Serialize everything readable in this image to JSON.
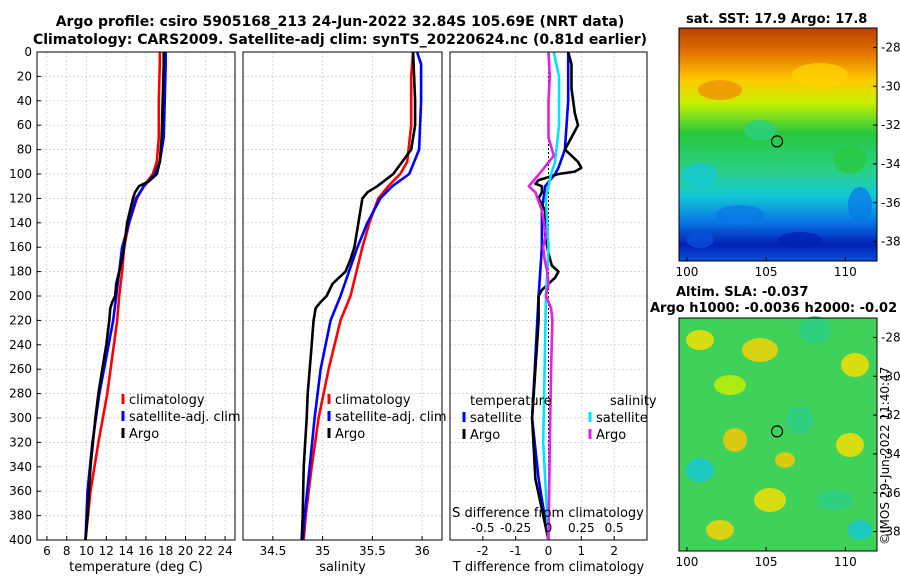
{
  "titles": {
    "line1": "Argo profile: csiro 5905168_213 24-Jun-2022 32.84S 105.69E (NRT data)",
    "line2": "Climatology: CARS2009. Satellite-adj clim: synTS_20220624.nc (0.81d earlier)"
  },
  "colors": {
    "climatology": "#ff0000",
    "satellite": "#0000ff",
    "argo": "#000000",
    "sal_satellite": "#00e5ff",
    "sal_argo": "#e61ee6"
  },
  "map_titles": {
    "sst": "sat. SST: 17.9 Argo: 17.8",
    "sla1": "Altim. SLA: -0.037",
    "sla2": "Argo h1000: -0.0036 h2000: -0.02"
  },
  "credit": "©IMOS 29-Jun-2022 11:40:47",
  "chart_data": [
    {
      "type": "line",
      "name": "temperature",
      "xlabel": "temperature (deg C)",
      "ylabel": "",
      "xlim": [
        5,
        25
      ],
      "ylim": [
        400,
        0
      ],
      "xticks": [
        6,
        8,
        10,
        12,
        14,
        16,
        18,
        20,
        22,
        24
      ],
      "yticks": [
        0,
        20,
        40,
        60,
        80,
        100,
        120,
        140,
        160,
        180,
        200,
        220,
        240,
        260,
        280,
        300,
        320,
        340,
        360,
        380,
        400
      ],
      "legend": [
        "climatology",
        "satellite-adj. clim",
        "Argo"
      ],
      "series": [
        {
          "name": "climatology",
          "color": "#ff0000",
          "depth": [
            0,
            10,
            40,
            70,
            90,
            100,
            110,
            120,
            140,
            160,
            180,
            200,
            220,
            250,
            280,
            320,
            360,
            400
          ],
          "values": [
            17.4,
            17.4,
            17.3,
            17.3,
            17.1,
            16.7,
            15.8,
            15.1,
            14.3,
            13.8,
            13.6,
            13.3,
            13.1,
            12.6,
            12.1,
            11.2,
            10.4,
            9.9
          ]
        },
        {
          "name": "satellite-adj. clim",
          "color": "#0000ff",
          "depth": [
            0,
            10,
            40,
            70,
            90,
            100,
            110,
            120,
            140,
            160,
            180,
            200,
            220,
            250,
            280,
            320,
            360,
            400
          ],
          "values": [
            18.0,
            18.0,
            17.9,
            17.8,
            17.4,
            16.9,
            15.8,
            15.0,
            14.3,
            13.6,
            13.3,
            13.0,
            12.7,
            12.0,
            11.3,
            10.6,
            10.1,
            9.9
          ]
        },
        {
          "name": "Argo",
          "color": "#000000",
          "depth": [
            0,
            10,
            40,
            70,
            90,
            100,
            106,
            110,
            115,
            120,
            140,
            160,
            170,
            180,
            190,
            200,
            205,
            210,
            220,
            240,
            260,
            280,
            300,
            340,
            380,
            400
          ],
          "values": [
            17.8,
            17.8,
            17.7,
            17.6,
            17.4,
            17.1,
            16.3,
            15.3,
            14.9,
            14.7,
            14.1,
            13.8,
            13.6,
            13.3,
            13.0,
            12.9,
            12.6,
            12.4,
            12.3,
            12.0,
            11.6,
            11.2,
            10.9,
            10.4,
            10.1,
            9.9
          ]
        }
      ]
    },
    {
      "type": "line",
      "name": "salinity",
      "xlabel": "salinity",
      "ylabel": "",
      "xlim": [
        34.2,
        36.2
      ],
      "ylim": [
        400,
        0
      ],
      "xticks": [
        34.5,
        35,
        35.5,
        36
      ],
      "legend": [
        "climatology",
        "satellite-adj. clim",
        "Argo"
      ],
      "series": [
        {
          "name": "climatology",
          "color": "#ff0000",
          "depth": [
            0,
            20,
            60,
            90,
            100,
            110,
            120,
            140,
            160,
            200,
            220,
            260,
            300,
            340,
            380,
            400
          ],
          "values": [
            35.91,
            35.89,
            35.89,
            35.85,
            35.78,
            35.66,
            35.56,
            35.47,
            35.4,
            35.28,
            35.18,
            35.06,
            34.96,
            34.89,
            34.83,
            34.81
          ]
        },
        {
          "name": "satellite-adj. clim",
          "color": "#0000ff",
          "depth": [
            0,
            10,
            40,
            80,
            100,
            110,
            120,
            140,
            160,
            200,
            220,
            260,
            300,
            340,
            380,
            400
          ],
          "values": [
            35.95,
            35.99,
            35.99,
            35.97,
            35.87,
            35.7,
            35.58,
            35.45,
            35.35,
            35.18,
            35.08,
            34.98,
            34.92,
            34.87,
            34.82,
            34.8
          ]
        },
        {
          "name": "Argo",
          "color": "#000000",
          "depth": [
            0,
            20,
            40,
            60,
            80,
            100,
            110,
            115,
            120,
            130,
            140,
            160,
            170,
            180,
            190,
            200,
            205,
            210,
            220,
            230,
            240,
            260,
            280,
            300,
            340,
            380,
            400
          ],
          "values": [
            35.91,
            35.92,
            35.93,
            35.93,
            35.89,
            35.71,
            35.55,
            35.45,
            35.4,
            35.38,
            35.36,
            35.32,
            35.28,
            35.23,
            35.1,
            35.04,
            34.98,
            34.93,
            34.91,
            34.9,
            34.89,
            34.87,
            34.85,
            34.84,
            34.81,
            34.8,
            34.79
          ]
        }
      ]
    },
    {
      "type": "line",
      "name": "differences",
      "xlabel": "T difference from climatology",
      "xlabel_top": "S difference from climatology",
      "xlim": [
        -3,
        3
      ],
      "ylim": [
        400,
        0
      ],
      "xticks": [
        -2,
        -1,
        0,
        1,
        2
      ],
      "xticks_labels": [
        "-2",
        "-1",
        "0",
        "1",
        "2"
      ],
      "sticks": [
        -0.5,
        -0.25,
        0,
        0.25,
        0.5
      ],
      "sticks_labels": [
        "-0.5",
        "-0.25",
        "0",
        "0.25",
        "0.5"
      ],
      "legend_headers": [
        "temperature",
        "salinity"
      ],
      "legend": [
        "satellite",
        "Argo",
        "satellite",
        "Argo"
      ],
      "series": [
        {
          "name": "T satellite",
          "color": "#0000ff",
          "depth": [
            0,
            10,
            40,
            80,
            95,
            100,
            110,
            130,
            160,
            200,
            250,
            300,
            350,
            400
          ],
          "values": [
            0.6,
            0.6,
            0.6,
            0.5,
            0.3,
            0.2,
            -0.1,
            -0.2,
            -0.2,
            -0.3,
            -0.4,
            -0.5,
            -0.3,
            0
          ]
        },
        {
          "name": "T Argo",
          "color": "#000000",
          "depth": [
            0,
            10,
            30,
            50,
            60,
            75,
            80,
            85,
            90,
            95,
            98,
            100,
            105,
            108,
            110,
            115,
            120,
            130,
            150,
            165,
            175,
            180,
            185,
            190,
            195,
            200,
            220,
            260,
            300,
            350,
            400
          ],
          "values": [
            0.6,
            0.7,
            0.7,
            0.8,
            0.9,
            0.6,
            0.5,
            0.7,
            0.9,
            1.0,
            0.8,
            0.3,
            -0.3,
            -0.4,
            -0.2,
            -0.2,
            -0.3,
            -0.1,
            -0.1,
            0.0,
            0.1,
            0.3,
            0.2,
            0.0,
            -0.2,
            -0.3,
            -0.3,
            -0.4,
            -0.5,
            -0.4,
            0
          ]
        },
        {
          "name": "S satellite",
          "color": "#00e5ff",
          "depth": [
            0,
            20,
            60,
            90,
            100,
            110,
            120,
            160,
            200,
            260,
            320,
            400
          ],
          "values": [
            0.04,
            0.08,
            0.08,
            0.05,
            0.02,
            0.0,
            -0.02,
            0.0,
            -0.02,
            -0.03,
            -0.04,
            0.0
          ]
        },
        {
          "name": "S Argo",
          "color": "#e61ee6",
          "depth": [
            0,
            20,
            40,
            70,
            85,
            100,
            110,
            115,
            130,
            150,
            160,
            170,
            180,
            190,
            200,
            210,
            220,
            260,
            320,
            400
          ],
          "values": [
            0.0,
            0.01,
            0.0,
            0.0,
            0.04,
            -0.07,
            -0.15,
            -0.1,
            -0.05,
            -0.02,
            -0.04,
            -0.03,
            -0.01,
            0.0,
            -0.02,
            0.02,
            0.03,
            0.02,
            0.01,
            0.0
          ]
        }
      ]
    },
    {
      "type": "heatmap",
      "name": "satellite SST map",
      "title": "sat. SST: 17.9 Argo: 17.8",
      "xlim": [
        99.5,
        112
      ],
      "ylim": [
        -39,
        -27
      ],
      "xticks": [
        100,
        105,
        110
      ],
      "yticks": [
        -28,
        -30,
        -32,
        -34,
        -36,
        -38
      ],
      "marker": {
        "lon": 105.69,
        "lat": -32.84
      }
    },
    {
      "type": "heatmap",
      "name": "altimetry SLA map",
      "title": "Altim. SLA: -0.037",
      "xlim": [
        99.5,
        112
      ],
      "ylim": [
        -39,
        -27
      ],
      "xticks": [
        100,
        105,
        110
      ],
      "yticks": [
        -28,
        -30,
        -32,
        -34,
        -36,
        -38
      ],
      "marker": {
        "lon": 105.69,
        "lat": -32.84
      }
    }
  ]
}
